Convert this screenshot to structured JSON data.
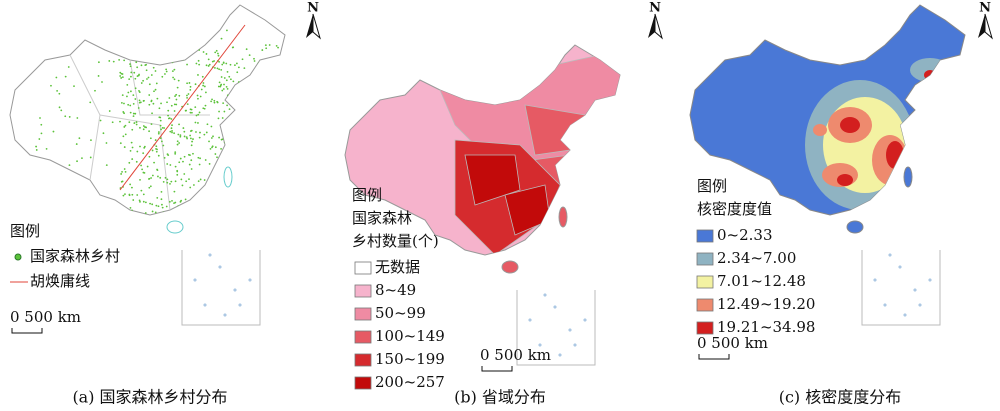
{
  "panels": [
    {
      "north": "N",
      "legend_title": "图例",
      "legend_subtitle": [],
      "legend_items": [
        {
          "label": "国家森林乡村",
          "color": "#5cc23a"
        },
        {
          "label": "胡焕庸线",
          "color": "#e0463a"
        }
      ],
      "scale": "0 500 km",
      "caption": "(a) 国家森林乡村分布"
    },
    {
      "north": "N",
      "legend_title": "图例",
      "legend_subtitle": [
        "国家森林",
        "乡村数量(个)"
      ],
      "legend_items": [
        {
          "label": "无数据",
          "color": "#ffffff"
        },
        {
          "label": "8~49",
          "color": "#f6b3cc"
        },
        {
          "label": "50~99",
          "color": "#ef8ba3"
        },
        {
          "label": "100~149",
          "color": "#e65a64"
        },
        {
          "label": "150~199",
          "color": "#d52b2e"
        },
        {
          "label": "200~257",
          "color": "#c20a0a"
        }
      ],
      "scale": "0 500 km",
      "caption": "(b) 省域分布"
    },
    {
      "north": "N",
      "legend_title": "图例",
      "legend_subtitle": [
        "核密度度值"
      ],
      "legend_items": [
        {
          "label": "0~2.33",
          "color": "#4a78d6"
        },
        {
          "label": "2.34~7.00",
          "color": "#8fb3c2"
        },
        {
          "label": "7.01~12.48",
          "color": "#f3f2a2"
        },
        {
          "label": "12.49~19.20",
          "color": "#ee8a6e"
        },
        {
          "label": "19.21~34.98",
          "color": "#d31f1f"
        }
      ],
      "scale": "0 500 km",
      "caption": "(c) 核密度度分布"
    }
  ]
}
